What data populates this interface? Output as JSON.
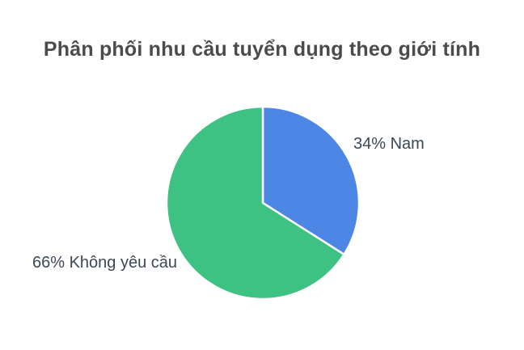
{
  "page": {
    "background_color": "#ffffff"
  },
  "chart_data": {
    "type": "pie",
    "title": "Phân phối nhu cầu tuyển dụng theo giới tính",
    "title_color": "#4b4b4b",
    "label_color": "#3c4856",
    "slice_border_color": "#ffffff",
    "legend_position": "none",
    "start_angle": "top",
    "direction": "clockwise",
    "categories": [
      "Nam",
      "Không yêu cầu"
    ],
    "values": [
      34,
      66
    ],
    "slices": [
      {
        "id": "nam",
        "label": "Nam",
        "value": 34,
        "percent": "34%",
        "display_label": "34% Nam",
        "color": "#4e86e5"
      },
      {
        "id": "khong-yeu-cau",
        "label": "Không yêu cầu",
        "value": 66,
        "percent": "66%",
        "display_label": "66% Không yêu cầu",
        "color": "#3dc283"
      }
    ]
  }
}
